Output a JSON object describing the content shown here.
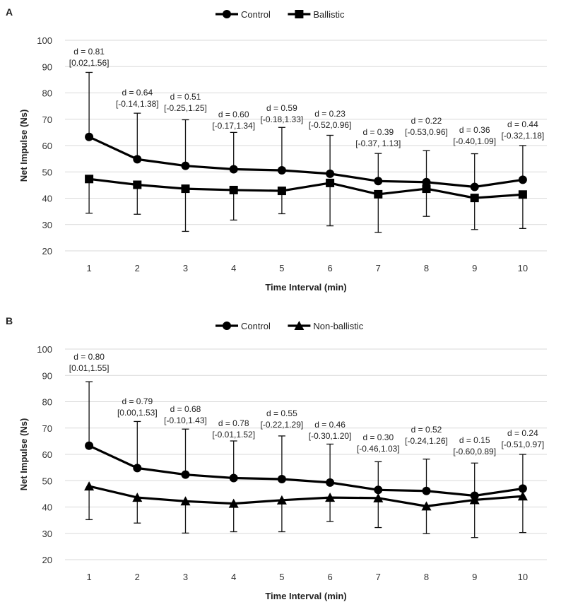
{
  "chart_data": [
    {
      "panel": "A",
      "type": "line",
      "xlabel": "Time Interval (min)",
      "ylabel": "Net Impulse (Ns)",
      "ylim": [
        20,
        100
      ],
      "yticks": [
        20,
        30,
        40,
        50,
        60,
        70,
        80,
        90,
        100
      ],
      "categories": [
        "1",
        "2",
        "3",
        "4",
        "5",
        "6",
        "7",
        "8",
        "9",
        "10"
      ],
      "legend": [
        "Control",
        "Ballistic"
      ],
      "legend_position": "top-center",
      "grid": true,
      "series": [
        {
          "name": "Control",
          "marker": "circle",
          "values": [
            63.3,
            54.8,
            52.3,
            51.0,
            50.6,
            49.3,
            46.5,
            46.1,
            44.3,
            47.0
          ],
          "err_upper": [
            87.8,
            72.3,
            69.8,
            65.0,
            66.9,
            63.9,
            57.0,
            58.1,
            56.9,
            60.0
          ],
          "err_lower": [
            0,
            0,
            0,
            0,
            0,
            0,
            0,
            0,
            0,
            0
          ]
        },
        {
          "name": "Ballistic",
          "marker": "square",
          "values": [
            47.3,
            45.1,
            43.6,
            43.1,
            42.8,
            45.8,
            41.5,
            43.6,
            40.1,
            41.4
          ],
          "err_upper": [
            0,
            0,
            0,
            0,
            0,
            0,
            0,
            0,
            0,
            0
          ],
          "err_lower": [
            34.3,
            33.9,
            27.4,
            31.7,
            34.1,
            29.5,
            27.0,
            33.1,
            28.1,
            28.5
          ]
        }
      ],
      "annotations": [
        {
          "d": "d = 0.81",
          "ci": "[0.02,1.56]"
        },
        {
          "d": "d = 0.64",
          "ci": "[-0.14,1.38]"
        },
        {
          "d": "d = 0.51",
          "ci": "[-0.25,1.25]"
        },
        {
          "d": "d = 0.60",
          "ci": "[-0.17,1.34]"
        },
        {
          "d": "d = 0.59",
          "ci": "[-0.18,1.33]"
        },
        {
          "d": "d = 0.23",
          "ci": "[-0.52,0.96]"
        },
        {
          "d": "d = 0.39",
          "ci": "[-0.37, 1.13]"
        },
        {
          "d": "d = 0.22",
          "ci": "[-0.53,0.96]"
        },
        {
          "d": "d = 0.36",
          "ci": "[-0.40,1.09]"
        },
        {
          "d": "d = 0.44",
          "ci": "[-0.32,1.18]"
        }
      ]
    },
    {
      "panel": "B",
      "type": "line",
      "xlabel": "Time Interval (min)",
      "ylabel": "Net Impulse (Ns)",
      "ylim": [
        20,
        100
      ],
      "yticks": [
        20,
        30,
        40,
        50,
        60,
        70,
        80,
        90,
        100
      ],
      "categories": [
        "1",
        "2",
        "3",
        "4",
        "5",
        "6",
        "7",
        "8",
        "9",
        "10"
      ],
      "legend": [
        "Control",
        "Non-ballistic"
      ],
      "legend_position": "top-center",
      "grid": true,
      "series": [
        {
          "name": "Control",
          "marker": "circle",
          "values": [
            63.3,
            54.8,
            52.3,
            51.0,
            50.6,
            49.3,
            46.5,
            46.1,
            44.3,
            47.0
          ],
          "err_upper": [
            87.6,
            72.5,
            69.6,
            65.1,
            67.0,
            63.9,
            57.2,
            58.2,
            56.7,
            60.0
          ],
          "err_lower": [
            0,
            0,
            0,
            0,
            0,
            0,
            0,
            0,
            0,
            0
          ]
        },
        {
          "name": "Non-ballistic",
          "marker": "triangle",
          "values": [
            47.9,
            43.6,
            42.2,
            41.3,
            42.6,
            43.6,
            43.4,
            40.3,
            42.7,
            44.1
          ],
          "err_upper": [
            0,
            0,
            0,
            0,
            0,
            0,
            0,
            0,
            0,
            0
          ],
          "err_lower": [
            35.2,
            33.9,
            30.1,
            30.6,
            30.6,
            34.5,
            32.2,
            29.9,
            28.4,
            30.3
          ]
        }
      ],
      "annotations": [
        {
          "d": "d = 0.80",
          "ci": "[0.01,1.55]"
        },
        {
          "d": "d = 0.79",
          "ci": "[0.00,1.53]"
        },
        {
          "d": "d = 0.68",
          "ci": "[-0.10,1.43]"
        },
        {
          "d": "d = 0.78",
          "ci": "[-0.01,1.52]"
        },
        {
          "d": "d = 0.55",
          "ci": "[-0.22,1.29]"
        },
        {
          "d": "d = 0.46",
          "ci": "[-0.30,1.20]"
        },
        {
          "d": "d = 0.30",
          "ci": "[-0.46,1.03]"
        },
        {
          "d": "d = 0.52",
          "ci": "[-0.24,1.26]"
        },
        {
          "d": "d = 0.15",
          "ci": "[-0.60,0.89]"
        },
        {
          "d": "d = 0.24",
          "ci": "[-0.51,0.97]"
        }
      ]
    }
  ]
}
